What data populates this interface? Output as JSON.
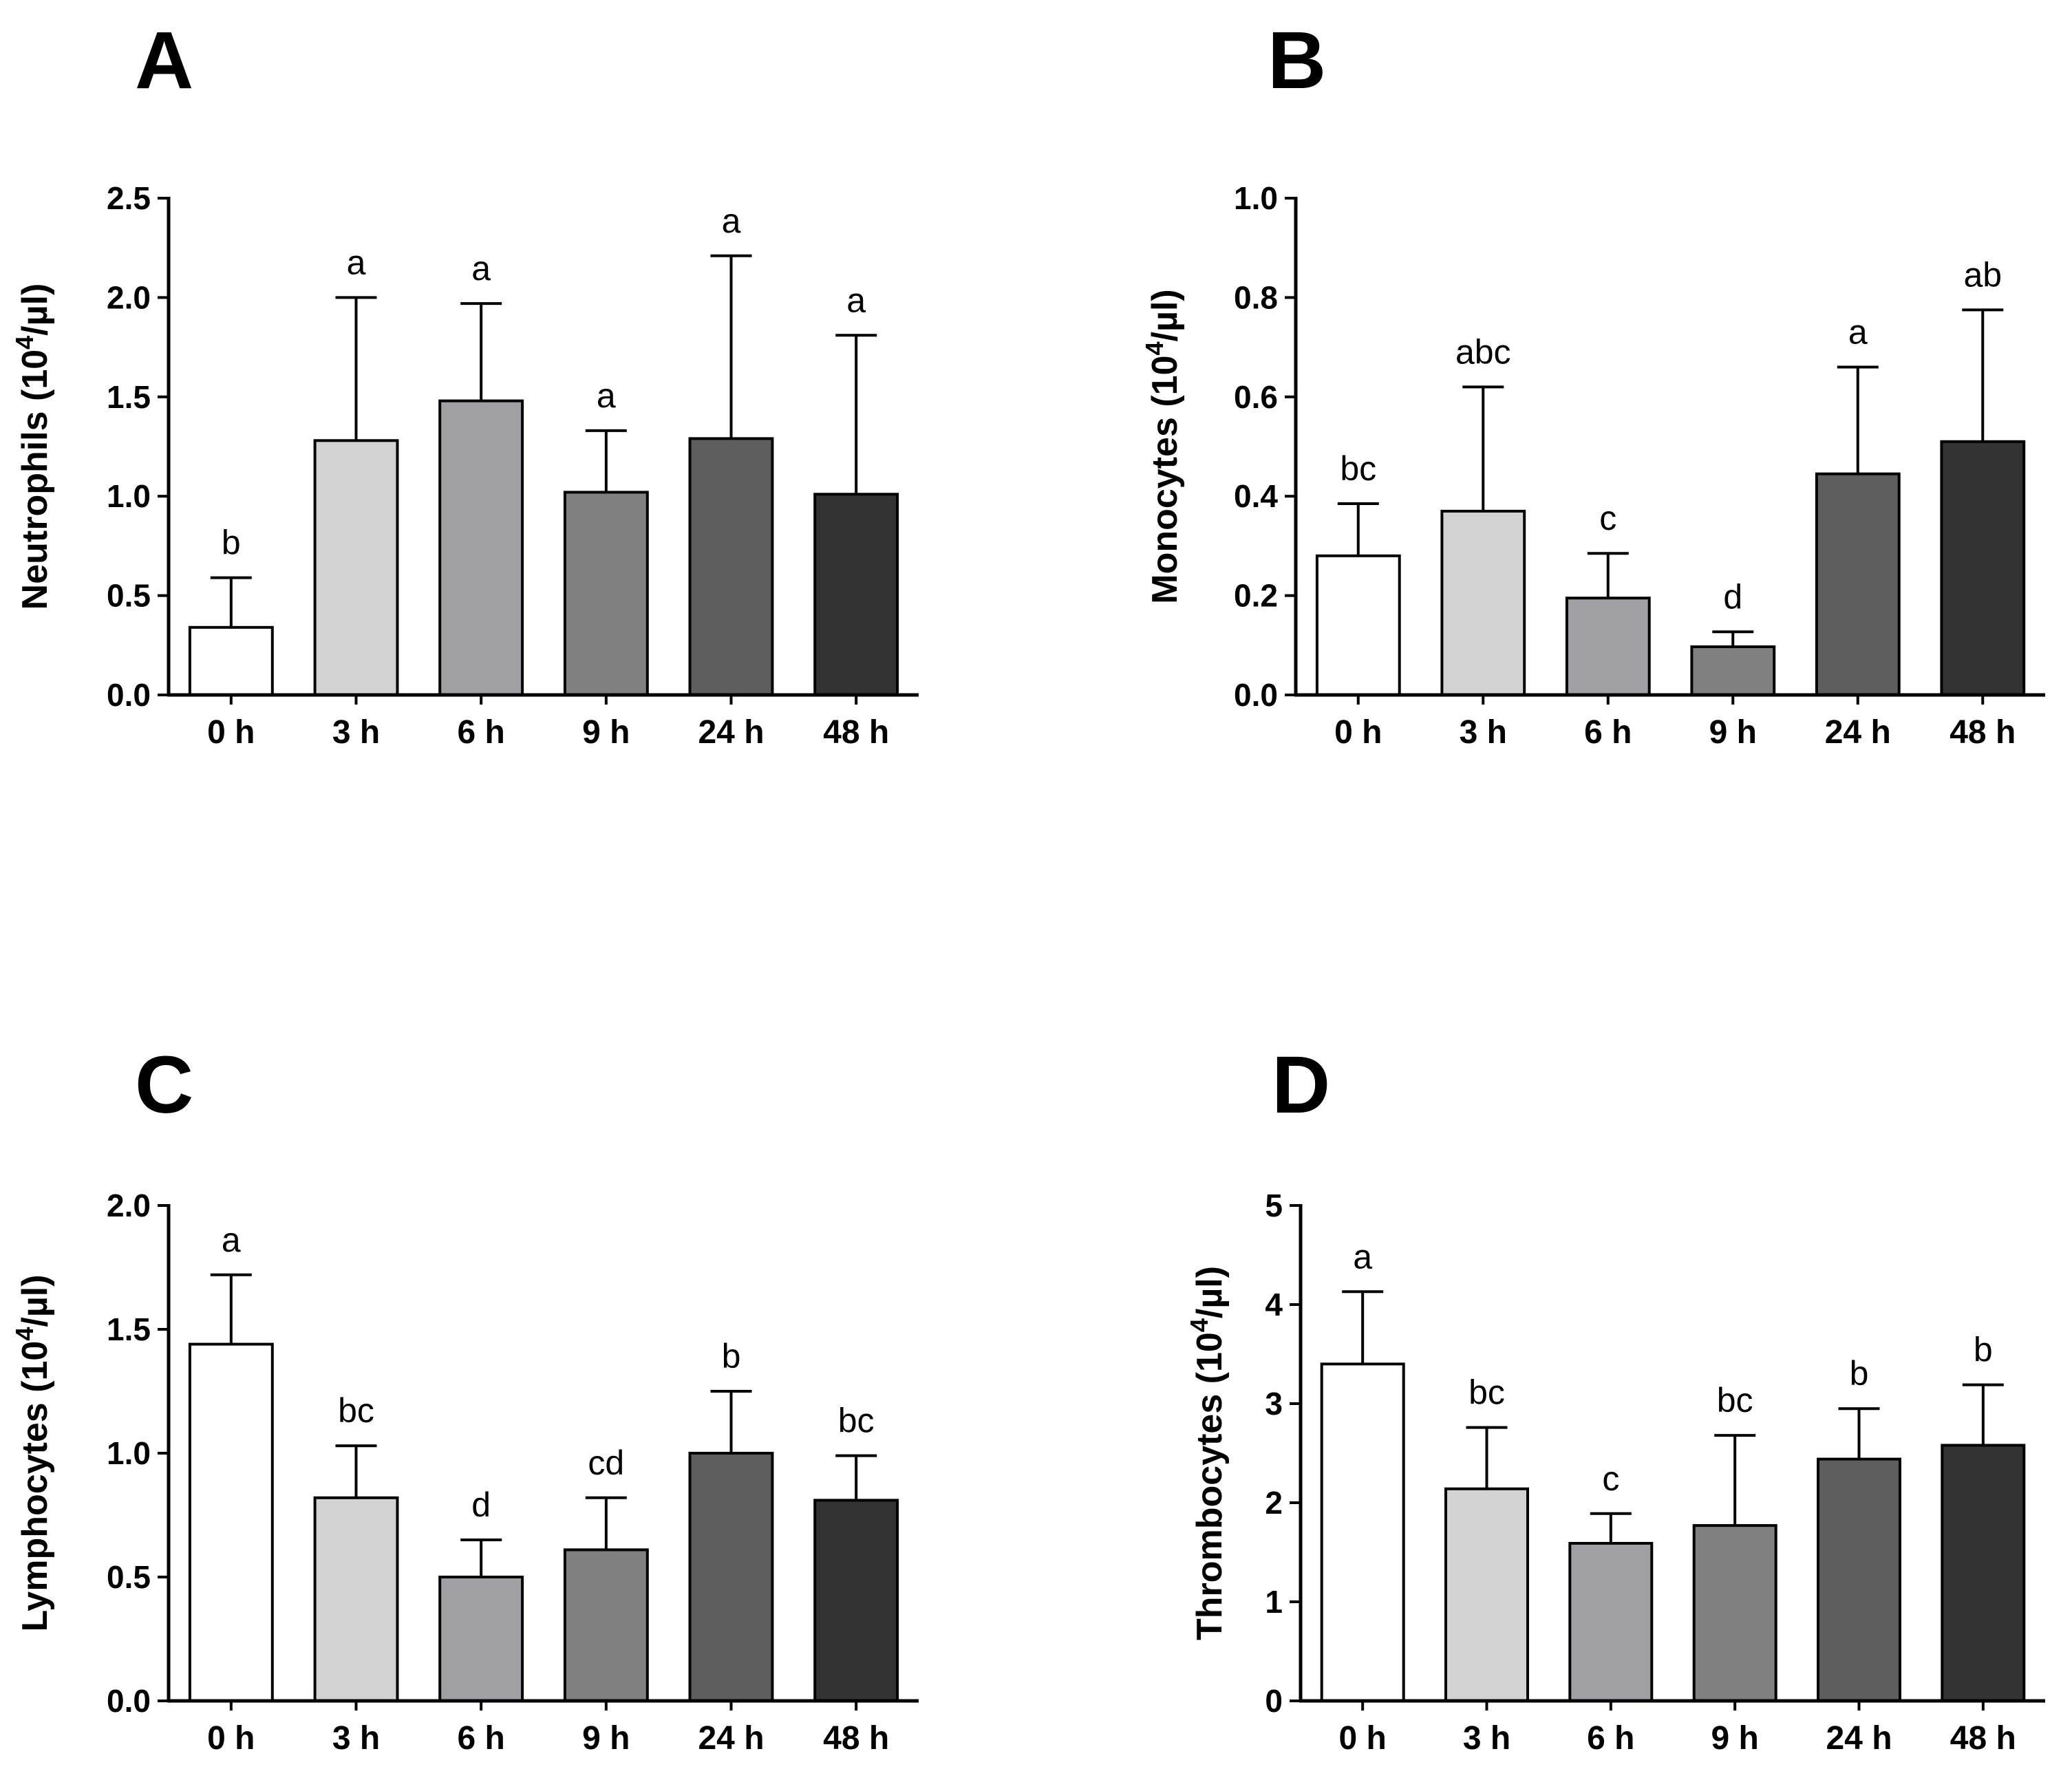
{
  "chart_data": [
    {
      "panel": "A",
      "type": "bar",
      "ylabel": "Neutrophils (10^4/µl)",
      "ylabel_base": "Neutrophils (10",
      "ylabel_sup": "4",
      "ylabel_unit": "/µl)",
      "categories": [
        "0 h",
        "3 h",
        "6 h",
        "9 h",
        "24 h",
        "48 h"
      ],
      "values": [
        0.34,
        1.28,
        1.48,
        1.02,
        1.29,
        1.01
      ],
      "errors": [
        0.25,
        0.72,
        0.49,
        0.31,
        0.92,
        0.8
      ],
      "letters": [
        "b",
        "a",
        "a",
        "a",
        "a",
        "a"
      ],
      "ylim": [
        0,
        2.5
      ],
      "yticks": [
        "0.0",
        "0.5",
        "1.0",
        "1.5",
        "2.0",
        "2.5"
      ],
      "ytick_values": [
        0,
        0.5,
        1.0,
        1.5,
        2.0,
        2.5
      ]
    },
    {
      "panel": "B",
      "type": "bar",
      "ylabel": "Monocytes (10^4/µl)",
      "ylabel_base": "Monocytes (10",
      "ylabel_sup": "4",
      "ylabel_unit": "/µl)",
      "categories": [
        "0 h",
        "3 h",
        "6 h",
        "9 h",
        "24 h",
        "48 h"
      ],
      "values": [
        0.28,
        0.37,
        0.195,
        0.097,
        0.445,
        0.51
      ],
      "errors": [
        0.105,
        0.25,
        0.09,
        0.03,
        0.215,
        0.265
      ],
      "letters": [
        "bc",
        "abc",
        "c",
        "d",
        "a",
        "ab"
      ],
      "ylim": [
        0,
        1.0
      ],
      "yticks": [
        "0.0",
        "0.2",
        "0.4",
        "0.6",
        "0.8",
        "1.0"
      ],
      "ytick_values": [
        0,
        0.2,
        0.4,
        0.6,
        0.8,
        1.0
      ]
    },
    {
      "panel": "C",
      "type": "bar",
      "ylabel": "Lymphocytes (10^4/µl)",
      "ylabel_base": "Lymphocytes (10",
      "ylabel_sup": "4",
      "ylabel_unit": "/µl)",
      "categories": [
        "0 h",
        "3 h",
        "6 h",
        "9 h",
        "24 h",
        "48 h"
      ],
      "values": [
        1.44,
        0.82,
        0.5,
        0.61,
        1.0,
        0.81
      ],
      "errors": [
        0.28,
        0.21,
        0.15,
        0.21,
        0.25,
        0.18
      ],
      "letters": [
        "a",
        "bc",
        "d",
        "cd",
        "b",
        "bc"
      ],
      "ylim": [
        0,
        2.0
      ],
      "yticks": [
        "0.0",
        "0.5",
        "1.0",
        "1.5",
        "2.0"
      ],
      "ytick_values": [
        0,
        0.5,
        1.0,
        1.5,
        2.0
      ]
    },
    {
      "panel": "D",
      "type": "bar",
      "ylabel": "Thrombocytes (10^4/µl)",
      "ylabel_base": "Thrombocytes (10",
      "ylabel_sup": "4",
      "ylabel_unit": "/µl)",
      "categories": [
        "0 h",
        "3 h",
        "6 h",
        "9 h",
        "24 h",
        "48 h"
      ],
      "values": [
        3.4,
        2.14,
        1.59,
        1.77,
        2.44,
        2.58
      ],
      "errors": [
        0.73,
        0.62,
        0.3,
        0.91,
        0.51,
        0.61
      ],
      "letters": [
        "a",
        "bc",
        "c",
        "bc",
        "b",
        "b"
      ],
      "ylim": [
        0,
        5
      ],
      "yticks": [
        "0",
        "1",
        "2",
        "3",
        "4",
        "5"
      ],
      "ytick_values": [
        0,
        1,
        2,
        3,
        4,
        5
      ]
    }
  ],
  "bar_colors": [
    "#ffffff",
    "#d2d2d2",
    "#a0a0a4",
    "#808080",
    "#5e5e5e",
    "#333333"
  ]
}
